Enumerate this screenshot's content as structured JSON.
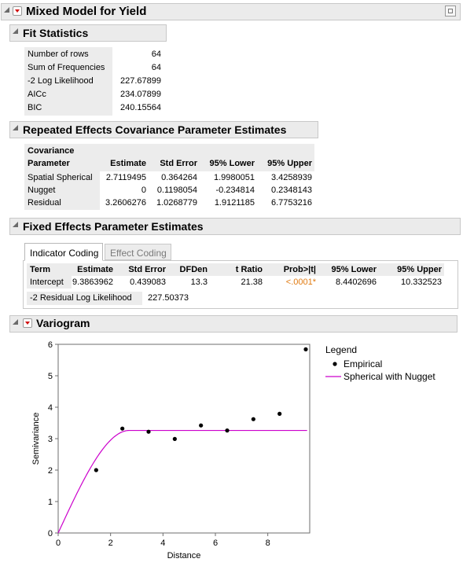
{
  "report": {
    "title": "Mixed Model for Yield"
  },
  "fit": {
    "title": "Fit Statistics",
    "rows": [
      {
        "label": "Number of rows",
        "value": "64"
      },
      {
        "label": "Sum of Frequencies",
        "value": "64"
      },
      {
        "label": "-2 Log Likelihood",
        "value": "227.67899"
      },
      {
        "label": "AICc",
        "value": "234.07899"
      },
      {
        "label": "BIC",
        "value": "240.15564"
      }
    ]
  },
  "cov": {
    "title": "Repeated Effects Covariance Parameter Estimates",
    "headers": [
      "Covariance",
      "Parameter",
      "Estimate",
      "Std Error",
      "95% Lower",
      "95% Upper"
    ],
    "rows": [
      [
        "Spatial Spherical",
        "2.7119495",
        "0.364264",
        "1.9980051",
        "3.4258939"
      ],
      [
        "Nugget",
        "0",
        "0.1198054",
        "-0.234814",
        "0.2348143"
      ],
      [
        "Residual",
        "3.2606276",
        "1.0268779",
        "1.9121185",
        "6.7753216"
      ]
    ]
  },
  "fixed": {
    "title": "Fixed Effects Parameter Estimates",
    "tabs": [
      "Indicator Coding",
      "Effect Coding"
    ],
    "headers": [
      "Term",
      "Estimate",
      "Std Error",
      "DFDen",
      "t Ratio",
      "Prob>|t|",
      "95% Lower",
      "95% Upper"
    ],
    "row": [
      "Intercept",
      "9.3863962",
      "0.439083",
      "13.3",
      "21.38",
      "<.0001*",
      "8.4402696",
      "10.332523"
    ],
    "resid_label": "-2 Residual Log Likelihood",
    "resid_value": "227.50373",
    "sig_color": "#e07a10"
  },
  "variogram": {
    "title": "Variogram"
  },
  "chart_data": {
    "type": "scatter",
    "xlabel": "Distance",
    "ylabel": "Semivariance",
    "xlim": [
      0,
      9.6
    ],
    "ylim": [
      0,
      6
    ],
    "xticks": [
      "0",
      "2",
      "4",
      "6",
      "8"
    ],
    "yticks": [
      "0",
      "1",
      "2",
      "3",
      "4",
      "5",
      "6"
    ],
    "legend_title": "Legend",
    "legend_position": "right",
    "series": [
      {
        "name": "Empirical",
        "kind": "points",
        "color": "#000000",
        "x": [
          1.45,
          2.45,
          3.45,
          4.45,
          5.45,
          6.45,
          7.45,
          8.45,
          9.45
        ],
        "y": [
          2.0,
          3.32,
          3.22,
          2.99,
          3.42,
          3.26,
          3.62,
          3.79,
          5.84
        ]
      },
      {
        "name": "Spherical with Nugget",
        "kind": "curve",
        "color": "#cc00cc",
        "nugget": 0,
        "sill": 3.2606,
        "range": 2.7119
      }
    ]
  }
}
